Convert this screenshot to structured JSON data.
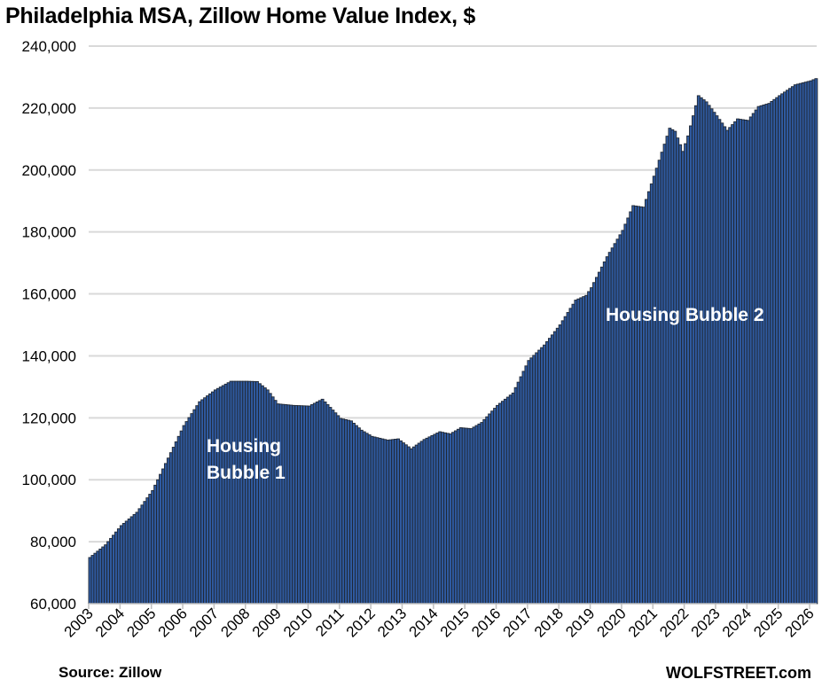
{
  "chart_data": {
    "type": "bar",
    "title": "Philadelphia MSA, Zillow Home Value Index, $",
    "source": "Source: Zillow",
    "brand": "WOLFSTREET.com",
    "xlabel": "",
    "ylabel": "",
    "ylim": [
      60000,
      240000
    ],
    "yticks": [
      60000,
      80000,
      100000,
      120000,
      140000,
      160000,
      180000,
      200000,
      220000,
      240000
    ],
    "ytick_labels": [
      "60,000",
      "80,000",
      "100,000",
      "120,000",
      "140,000",
      "160,000",
      "180,000",
      "200,000",
      "220,000",
      "240,000"
    ],
    "xtick_labels": [
      "2003",
      "2004",
      "2005",
      "2006",
      "2007",
      "2008",
      "2009",
      "2010",
      "2011",
      "2012",
      "2013",
      "2014",
      "2015",
      "2016",
      "2017",
      "2018",
      "2019",
      "2020",
      "2021",
      "2022",
      "2023",
      "2024",
      "2025",
      "2026"
    ],
    "grid": true,
    "frequency": "monthly, Jan 2003 onward",
    "series_keypoints": {
      "month_index": [
        0,
        6,
        12,
        18,
        24,
        30,
        36,
        42,
        48,
        54,
        60,
        64,
        68,
        72,
        78,
        84,
        89,
        93,
        96,
        100,
        104,
        108,
        114,
        118,
        123,
        128,
        134,
        138,
        142,
        146,
        150,
        156,
        162,
        168,
        174,
        180,
        186,
        190,
        192,
        198,
        204,
        208,
        212,
        216,
        222,
        224,
        227,
        229,
        233,
        236,
        240,
        244,
        248,
        252,
        256,
        260,
        264,
        270,
        276,
        278
      ],
      "values": [
        74900,
        79000,
        85200,
        89500,
        96500,
        107000,
        117500,
        125200,
        129000,
        131800,
        131800,
        131700,
        129000,
        124500,
        124000,
        123800,
        126000,
        122500,
        119800,
        119000,
        116000,
        114000,
        112800,
        113200,
        110000,
        113000,
        115500,
        114800,
        116800,
        116500,
        118500,
        124000,
        128000,
        138500,
        143500,
        150000,
        158000,
        159500,
        162000,
        172000,
        180500,
        188500,
        188000,
        198000,
        213500,
        212500,
        206000,
        211000,
        224000,
        222000,
        217500,
        212800,
        216500,
        216000,
        220500,
        221500,
        224000,
        227500,
        228800,
        229500
      ]
    },
    "annotations": [
      {
        "lines": [
          "Housing",
          "Bubble 1"
        ]
      },
      {
        "lines": [
          "Housing Bubble 2"
        ]
      }
    ],
    "colors": {
      "bar_fill": "#2f5aa0",
      "bar_edge": "#1f2733",
      "grid": "#d9d9d9",
      "axis": "#bfbfbf"
    }
  }
}
